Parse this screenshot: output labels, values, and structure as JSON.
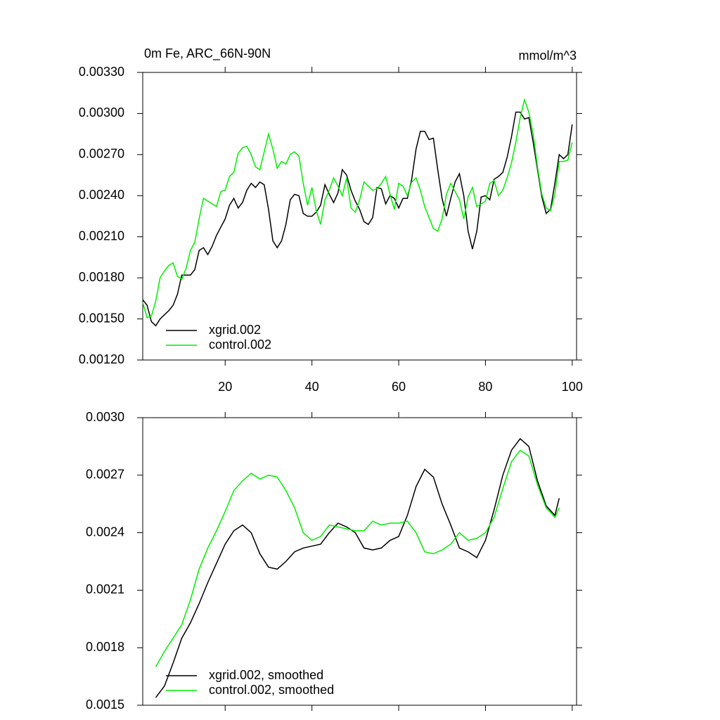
{
  "chart_data": [
    {
      "type": "line",
      "title": "0m Fe, ARC_66N-90N",
      "units_label": "mmol/m^3",
      "xlim": [
        1,
        101
      ],
      "xticks": [
        20,
        40,
        60,
        80,
        100
      ],
      "xtick_labels_visible": true,
      "ylim": [
        0.0012,
        0.0033
      ],
      "yticks": [
        {
          "value": 0.0012,
          "label": "0.00120"
        },
        {
          "value": 0.0015,
          "label": "0.00150"
        },
        {
          "value": 0.0018,
          "label": "0.00180"
        },
        {
          "value": 0.0021,
          "label": "0.00210"
        },
        {
          "value": 0.0024,
          "label": "0.00240"
        },
        {
          "value": 0.0027,
          "label": "0.00270"
        },
        {
          "value": 0.003,
          "label": "0.00300"
        },
        {
          "value": 0.0033,
          "label": "0.00330"
        }
      ],
      "legend": "bottom-left",
      "x": [
        1,
        2,
        3,
        4,
        5,
        6,
        7,
        8,
        9,
        10,
        11,
        12,
        13,
        14,
        15,
        16,
        17,
        18,
        19,
        20,
        21,
        22,
        23,
        24,
        25,
        26,
        27,
        28,
        29,
        30,
        31,
        32,
        33,
        34,
        35,
        36,
        37,
        38,
        39,
        40,
        41,
        42,
        43,
        44,
        45,
        46,
        47,
        48,
        49,
        50,
        51,
        52,
        53,
        54,
        55,
        56,
        57,
        58,
        59,
        60,
        61,
        62,
        63,
        64,
        65,
        66,
        67,
        68,
        69,
        70,
        71,
        72,
        73,
        74,
        75,
        76,
        77,
        78,
        79,
        80,
        81,
        82,
        83,
        84,
        85,
        86,
        87,
        88,
        89,
        90,
        91,
        92,
        93,
        94,
        95,
        96,
        97,
        98,
        99,
        100
      ],
      "series": [
        {
          "name": "xgrid.002",
          "color": "#000000",
          "values": [
            0.00164,
            0.0016,
            0.00148,
            0.00145,
            0.0015,
            0.00153,
            0.00156,
            0.0016,
            0.00168,
            0.00182,
            0.00182,
            0.00182,
            0.00186,
            0.002,
            0.00202,
            0.00197,
            0.00203,
            0.00211,
            0.00217,
            0.00223,
            0.00233,
            0.00238,
            0.00231,
            0.00235,
            0.00244,
            0.00249,
            0.00246,
            0.0025,
            0.00248,
            0.0023,
            0.00207,
            0.00202,
            0.00207,
            0.00219,
            0.00237,
            0.00241,
            0.0024,
            0.00227,
            0.00225,
            0.00225,
            0.00228,
            0.00233,
            0.00248,
            0.00241,
            0.00235,
            0.00242,
            0.00259,
            0.00255,
            0.00244,
            0.00236,
            0.0023,
            0.00221,
            0.00219,
            0.00224,
            0.00246,
            0.00245,
            0.00234,
            0.0024,
            0.00238,
            0.00231,
            0.00238,
            0.00238,
            0.00252,
            0.00274,
            0.00287,
            0.00287,
            0.00281,
            0.00282,
            0.00259,
            0.00238,
            0.00225,
            0.00238,
            0.0025,
            0.00256,
            0.0024,
            0.00214,
            0.00201,
            0.00214,
            0.00239,
            0.0024,
            0.00237,
            0.00252,
            0.00254,
            0.00257,
            0.00268,
            0.00283,
            0.00301,
            0.00301,
            0.00296,
            0.00297,
            0.00279,
            0.00259,
            0.00239,
            0.00227,
            0.0023,
            0.00249,
            0.0027,
            0.00267,
            0.0027,
            0.00292
          ]
        },
        {
          "name": "control.002",
          "color": "#00ee00",
          "values": [
            0.00162,
            0.00151,
            0.00152,
            0.00163,
            0.0018,
            0.00185,
            0.00189,
            0.00191,
            0.00181,
            0.00179,
            0.00187,
            0.002,
            0.00206,
            0.00223,
            0.00238,
            0.00236,
            0.00234,
            0.00232,
            0.00243,
            0.00244,
            0.00254,
            0.00257,
            0.00271,
            0.00275,
            0.00276,
            0.0027,
            0.00261,
            0.00259,
            0.00272,
            0.00285,
            0.00274,
            0.0026,
            0.00265,
            0.00263,
            0.0027,
            0.00272,
            0.00269,
            0.00249,
            0.00233,
            0.00246,
            0.00229,
            0.00219,
            0.00237,
            0.00244,
            0.00253,
            0.00247,
            0.0024,
            0.00253,
            0.00231,
            0.00228,
            0.00237,
            0.0025,
            0.00247,
            0.00244,
            0.00245,
            0.00249,
            0.00254,
            0.00241,
            0.0023,
            0.00249,
            0.00247,
            0.0024,
            0.0025,
            0.00253,
            0.00244,
            0.00232,
            0.00224,
            0.00216,
            0.00214,
            0.00223,
            0.00241,
            0.00249,
            0.00243,
            0.00237,
            0.00223,
            0.00239,
            0.00246,
            0.00232,
            0.00234,
            0.00236,
            0.00249,
            0.00251,
            0.0024,
            0.00244,
            0.00253,
            0.00264,
            0.00279,
            0.00297,
            0.0031,
            0.00301,
            0.00285,
            0.00261,
            0.00241,
            0.00231,
            0.00229,
            0.00241,
            0.00265,
            0.00265,
            0.00266,
            0.00279
          ]
        }
      ]
    },
    {
      "type": "line",
      "xlim": [
        1,
        101
      ],
      "xticks": [
        20,
        40,
        60,
        80,
        100
      ],
      "xtick_labels_visible": false,
      "ylim": [
        0.0015,
        0.003
      ],
      "yticks": [
        0.0015,
        0.0018,
        0.0021,
        0.0024,
        0.0027,
        {
          "value": 0.003,
          "label": "0.0030"
        }
      ],
      "legend": "bottom-left",
      "x": [
        4,
        6,
        8,
        10,
        12,
        14,
        16,
        18,
        20,
        22,
        24,
        26,
        28,
        30,
        32,
        34,
        36,
        38,
        40,
        42,
        44,
        46,
        48,
        50,
        52,
        54,
        56,
        58,
        60,
        62,
        64,
        66,
        68,
        70,
        72,
        74,
        76,
        78,
        80,
        82,
        84,
        86,
        88,
        90,
        92,
        94,
        96,
        97
      ],
      "series": [
        {
          "name": "xgrid.002, smoothed",
          "color": "#000000",
          "values": [
            0.00154,
            0.0016,
            0.00172,
            0.00185,
            0.00193,
            0.00203,
            0.00214,
            0.00224,
            0.00234,
            0.00241,
            0.00244,
            0.0024,
            0.00229,
            0.00222,
            0.00221,
            0.00225,
            0.0023,
            0.00232,
            0.00233,
            0.00234,
            0.0024,
            0.00245,
            0.00243,
            0.0024,
            0.00232,
            0.00231,
            0.00232,
            0.00236,
            0.00238,
            0.00249,
            0.00264,
            0.00273,
            0.00269,
            0.00255,
            0.00244,
            0.00232,
            0.0023,
            0.00227,
            0.00236,
            0.00252,
            0.0027,
            0.00283,
            0.00289,
            0.00285,
            0.00267,
            0.00254,
            0.00249,
            0.00258
          ]
        },
        {
          "name": "control.002, smoothed",
          "color": "#00ee00",
          "values": [
            0.0017,
            0.00178,
            0.00185,
            0.00192,
            0.00205,
            0.00221,
            0.00232,
            0.00241,
            0.00251,
            0.00262,
            0.00267,
            0.00271,
            0.00268,
            0.0027,
            0.00269,
            0.00262,
            0.00253,
            0.0024,
            0.00236,
            0.00238,
            0.00244,
            0.00243,
            0.00242,
            0.00241,
            0.00241,
            0.00246,
            0.00244,
            0.00245,
            0.00245,
            0.00246,
            0.0024,
            0.0023,
            0.00229,
            0.00231,
            0.00234,
            0.0024,
            0.00236,
            0.00237,
            0.0024,
            0.00248,
            0.00263,
            0.00277,
            0.00283,
            0.0028,
            0.00265,
            0.00253,
            0.00248,
            0.00253
          ]
        }
      ]
    }
  ]
}
